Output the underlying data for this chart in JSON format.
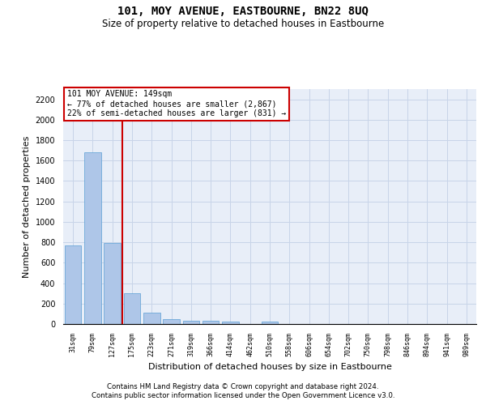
{
  "title": "101, MOY AVENUE, EASTBOURNE, BN22 8UQ",
  "subtitle": "Size of property relative to detached houses in Eastbourne",
  "xlabel": "Distribution of detached houses by size in Eastbourne",
  "ylabel": "Number of detached properties",
  "categories": [
    "31sqm",
    "79sqm",
    "127sqm",
    "175sqm",
    "223sqm",
    "271sqm",
    "319sqm",
    "366sqm",
    "414sqm",
    "462sqm",
    "510sqm",
    "558sqm",
    "606sqm",
    "654sqm",
    "702sqm",
    "750sqm",
    "798sqm",
    "846sqm",
    "894sqm",
    "941sqm",
    "989sqm"
  ],
  "values": [
    770,
    1680,
    790,
    300,
    110,
    45,
    32,
    28,
    22,
    0,
    20,
    0,
    0,
    0,
    0,
    0,
    0,
    0,
    0,
    0,
    0
  ],
  "bar_color": "#aec6e8",
  "bar_edge_color": "#5a9fd4",
  "grid_color": "#c8d4e8",
  "bg_color": "#e8eef8",
  "vline_color": "#cc0000",
  "annotation_text": "101 MOY AVENUE: 149sqm\n← 77% of detached houses are smaller (2,867)\n22% of semi-detached houses are larger (831) →",
  "annotation_box_color": "#ffffff",
  "annotation_box_edge_color": "#cc0000",
  "footnote1": "Contains HM Land Registry data © Crown copyright and database right 2024.",
  "footnote2": "Contains public sector information licensed under the Open Government Licence v3.0.",
  "ylim": [
    0,
    2300
  ],
  "yticks": [
    0,
    200,
    400,
    600,
    800,
    1000,
    1200,
    1400,
    1600,
    1800,
    2000,
    2200
  ]
}
